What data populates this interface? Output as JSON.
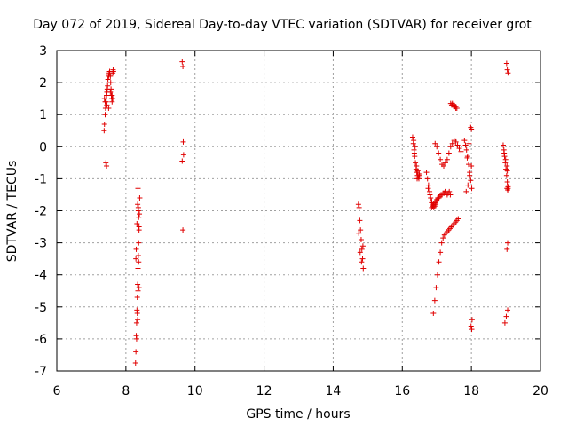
{
  "chart_data": {
    "type": "scatter",
    "title": "Day 072 of 2019, Sidereal Day-to-day VTEC variation (SDTVAR) for receiver grot",
    "xlabel": "GPS time / hours",
    "ylabel": "SDTVAR / TECUs",
    "xlim": [
      6,
      20
    ],
    "ylim": [
      -7,
      3
    ],
    "x_ticks": [
      "6",
      "8",
      "10",
      "12",
      "14",
      "16",
      "18",
      "20"
    ],
    "y_ticks": [
      "-7",
      "-6",
      "-5",
      "-4",
      "-3",
      "-2",
      "-1",
      "0",
      "1",
      "2",
      "3"
    ],
    "grid": true,
    "marker": "+",
    "color": "#e00000",
    "series": [
      {
        "name": "SDTVAR",
        "x": [
          7.37,
          7.38,
          7.4,
          7.41,
          7.43,
          7.44,
          7.45,
          7.46,
          7.47,
          7.48,
          7.5,
          7.51,
          7.52,
          7.53,
          7.55,
          7.56,
          7.57,
          7.58,
          7.59,
          7.6,
          7.62,
          7.63,
          7.64,
          7.45,
          7.5,
          7.55,
          7.6,
          7.62,
          7.42,
          7.44,
          7.38,
          7.4,
          8.28,
          8.29,
          8.3,
          8.31,
          8.32,
          8.33,
          8.34,
          8.35,
          8.36,
          8.37,
          8.38,
          8.39,
          8.4,
          8.31,
          8.33,
          8.35,
          8.37,
          8.38,
          8.36,
          8.34,
          8.32,
          8.3,
          8.29,
          8.35,
          8.36,
          8.37,
          8.38,
          8.34,
          9.63,
          9.65,
          9.66,
          9.67,
          9.63,
          9.65,
          14.73,
          14.75,
          14.77,
          14.79,
          14.81,
          14.83,
          14.85,
          14.87,
          14.74,
          14.78,
          14.82,
          14.86,
          16.3,
          16.32,
          16.34,
          16.36,
          16.38,
          16.4,
          16.42,
          16.44,
          16.46,
          16.48,
          16.5,
          16.33,
          16.37,
          16.41,
          16.45,
          16.49,
          16.35,
          16.43,
          16.7,
          16.73,
          16.76,
          16.79,
          16.82,
          16.85,
          16.88,
          16.91,
          16.94,
          16.97,
          17.0,
          17.03,
          16.75,
          16.8,
          16.85,
          16.9,
          16.9,
          16.94,
          16.98,
          17.02,
          17.06,
          17.1,
          17.14,
          17.18,
          17.22,
          17.26,
          17.3,
          17.34,
          17.38,
          17.42,
          17.46,
          17.5,
          17.54,
          17.58,
          17.62,
          16.95,
          17.0,
          17.05,
          17.1,
          17.15,
          17.2,
          17.25,
          17.3,
          17.35,
          17.4,
          17.45,
          17.5,
          17.55,
          17.6,
          17.65,
          17.7,
          16.85,
          16.88,
          16.91,
          16.94,
          16.97,
          17.0,
          17.03,
          17.06,
          17.09,
          17.12,
          17.15,
          17.18,
          17.21,
          17.24,
          17.27,
          17.3,
          17.33,
          17.36,
          17.39,
          17.4,
          17.43,
          17.46,
          17.49,
          17.52,
          17.55,
          17.58,
          17.45,
          17.5,
          17.55,
          17.8,
          17.83,
          17.86,
          17.89,
          17.92,
          17.95,
          17.98,
          18.01,
          17.85,
          17.9,
          17.95,
          18.0,
          17.88,
          17.93,
          17.98,
          18.0,
          18.02,
          17.99,
          18.01,
          18.92,
          18.94,
          18.96,
          18.98,
          19.0,
          19.02,
          19.04,
          19.06,
          18.95,
          18.99,
          19.03,
          19.05,
          19.02,
          19.04,
          19.06,
          18.97,
          19.01,
          19.05,
          19.03,
          19.05,
          19.03,
          19.06,
          19.04
        ],
        "y": [
          0.5,
          0.7,
          1.0,
          1.2,
          1.4,
          1.6,
          1.7,
          1.8,
          1.9,
          2.1,
          2.2,
          2.25,
          2.3,
          2.35,
          2.2,
          2.0,
          1.8,
          1.6,
          1.5,
          1.4,
          2.3,
          2.4,
          2.35,
          1.3,
          1.2,
          1.7,
          1.6,
          1.5,
          -0.5,
          -0.6,
          1.5,
          1.4,
          -6.75,
          -6.4,
          -5.9,
          -5.5,
          -5.1,
          -4.7,
          -4.3,
          -3.8,
          -3.4,
          -3.0,
          -2.6,
          -2.1,
          -1.6,
          -6.0,
          -5.2,
          -4.5,
          -3.6,
          -2.5,
          -2.0,
          -1.8,
          -2.4,
          -3.2,
          -3.5,
          -1.3,
          -1.9,
          -2.2,
          -4.4,
          -5.4,
          2.65,
          2.5,
          0.15,
          -0.25,
          -0.45,
          -2.6,
          -1.8,
          -1.9,
          -2.3,
          -2.6,
          -2.9,
          -3.2,
          -3.5,
          -3.8,
          -2.7,
          -3.3,
          -3.6,
          -3.1,
          0.3,
          0.1,
          -0.1,
          -0.3,
          -0.5,
          -0.7,
          -0.8,
          -0.9,
          -0.95,
          -1.0,
          -0.9,
          0.2,
          0.0,
          -0.6,
          -0.75,
          -0.85,
          -0.2,
          -1.0,
          -0.8,
          -1.0,
          -1.2,
          -1.4,
          -1.6,
          -1.75,
          -1.85,
          -1.9,
          -1.85,
          -1.8,
          -1.7,
          -1.6,
          -1.3,
          -1.5,
          -1.7,
          -1.8,
          -5.2,
          -4.8,
          -4.4,
          -4.0,
          -3.6,
          -3.3,
          -3.0,
          -2.85,
          -2.75,
          -2.7,
          -2.65,
          -2.6,
          -2.55,
          -2.5,
          -2.45,
          -2.4,
          -2.35,
          -2.3,
          -2.25,
          0.1,
          0.0,
          -0.2,
          -0.4,
          -0.55,
          -0.6,
          -0.5,
          -0.4,
          -0.2,
          0.0,
          0.1,
          0.2,
          0.15,
          0.05,
          -0.05,
          -0.15,
          -1.9,
          -1.85,
          -1.8,
          -1.75,
          -1.7,
          -1.65,
          -1.6,
          -1.6,
          -1.55,
          -1.5,
          -1.5,
          -1.45,
          -1.45,
          -1.4,
          -1.45,
          -1.5,
          -1.45,
          -1.4,
          -1.5,
          1.35,
          1.3,
          1.3,
          1.25,
          1.25,
          1.2,
          1.2,
          1.35,
          1.3,
          1.25,
          0.2,
          0.05,
          -0.1,
          -0.3,
          -0.55,
          -0.8,
          -1.05,
          -1.3,
          -1.4,
          -1.2,
          -0.9,
          -0.6,
          -0.35,
          0.1,
          0.6,
          0.55,
          -5.4,
          -5.6,
          -5.7,
          0.05,
          -0.1,
          -0.3,
          -0.5,
          -0.7,
          -0.9,
          -1.1,
          -1.3,
          -0.2,
          -0.4,
          -0.6,
          -1.35,
          2.6,
          2.4,
          2.3,
          -5.5,
          -5.3,
          -5.1,
          -3.2,
          -3.0,
          -1.3,
          -1.25,
          -0.75
        ]
      }
    ]
  }
}
